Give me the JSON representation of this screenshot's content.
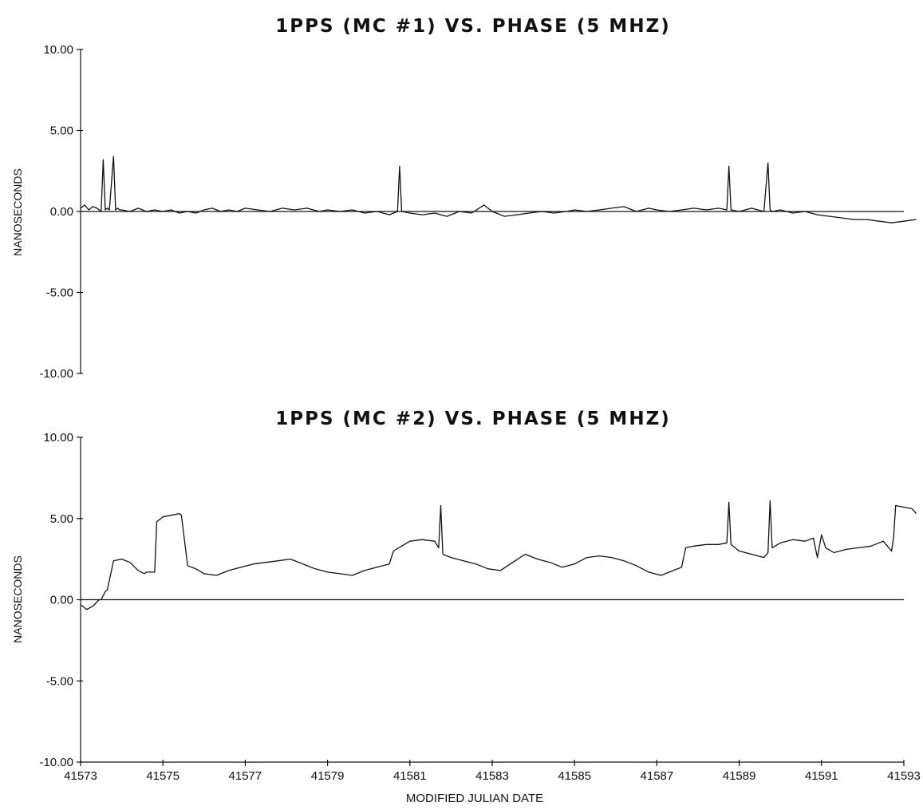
{
  "chart_data": [
    {
      "type": "line",
      "title": "1PPS (MC #1) VS. PHASE (5 MHZ)",
      "xlabel": "",
      "ylabel": "NANOSECONDS",
      "xlim": [
        41573,
        41593
      ],
      "ylim": [
        -10,
        10
      ],
      "yticks": [
        10,
        5,
        0,
        -5,
        -10
      ],
      "ytick_labels": [
        "10.00",
        "5.00",
        "0.00",
        "-5.00",
        "-10.00"
      ],
      "xticks": [],
      "reference_line": 0,
      "series": [
        {
          "x": [
            41573.0,
            41573.1,
            41573.2,
            41573.3,
            41573.4,
            41573.5,
            41573.55,
            41573.6,
            41573.65,
            41573.7,
            41573.8,
            41573.85,
            41573.9,
            41573.95,
            41574.0,
            41574.2,
            41574.4,
            41574.6,
            41574.8,
            41575.0,
            41575.2,
            41575.4,
            41575.6,
            41575.8,
            41576.0,
            41576.2,
            41576.4,
            41576.6,
            41576.8,
            41577.0,
            41577.3,
            41577.6,
            41577.9,
            41578.2,
            41578.5,
            41578.8,
            41579.0,
            41579.3,
            41579.6,
            41579.9,
            41580.2,
            41580.5,
            41580.7,
            41580.75,
            41580.8,
            41581.0,
            41581.3,
            41581.6,
            41581.9,
            41582.2,
            41582.5,
            41582.8,
            41583.0,
            41583.3,
            41583.6,
            41583.9,
            41584.2,
            41584.5,
            41584.8,
            41585.0,
            41585.3,
            41585.6,
            41585.9,
            41586.2,
            41586.5,
            41586.8,
            41587.0,
            41587.3,
            41587.6,
            41587.9,
            41588.2,
            41588.5,
            41588.7,
            41588.75,
            41588.8,
            41589.0,
            41589.3,
            41589.6,
            41589.7,
            41589.75,
            41589.8,
            41590.0,
            41590.3,
            41590.6,
            41590.9,
            41591.2,
            41591.5,
            41591.8,
            41592.1,
            41592.4,
            41592.7,
            41593.0,
            41593.3
          ],
          "y": [
            0.2,
            0.4,
            0.1,
            0.3,
            0.2,
            0.0,
            3.2,
            0.1,
            0.2,
            0.1,
            3.4,
            0.1,
            0.2,
            0.1,
            0.1,
            0.0,
            0.2,
            0.0,
            0.1,
            0.0,
            0.1,
            -0.1,
            0.0,
            -0.1,
            0.1,
            0.2,
            0.0,
            0.1,
            0.0,
            0.2,
            0.1,
            0.0,
            0.2,
            0.1,
            0.2,
            0.0,
            0.1,
            0.0,
            0.1,
            -0.1,
            0.0,
            -0.2,
            0.0,
            2.8,
            0.0,
            -0.1,
            -0.2,
            -0.1,
            -0.3,
            0.0,
            -0.1,
            0.4,
            0.0,
            -0.3,
            -0.2,
            -0.1,
            0.0,
            -0.1,
            0.0,
            0.1,
            0.0,
            0.1,
            0.2,
            0.3,
            0.0,
            0.2,
            0.1,
            0.0,
            0.1,
            0.2,
            0.1,
            0.2,
            0.1,
            2.8,
            0.1,
            0.0,
            0.2,
            0.0,
            3.0,
            0.1,
            0.0,
            0.1,
            -0.1,
            0.0,
            -0.2,
            -0.3,
            -0.4,
            -0.5,
            -0.5,
            -0.6,
            -0.7,
            -0.6,
            -0.5
          ]
        }
      ]
    },
    {
      "type": "line",
      "title": "1PPS (MC #2) VS. PHASE (5 MHZ)",
      "xlabel": "MODIFIED JULIAN DATE",
      "ylabel": "NANOSECONDS",
      "xlim": [
        41573,
        41593
      ],
      "ylim": [
        -10,
        10
      ],
      "yticks": [
        10,
        5,
        0,
        -5,
        -10
      ],
      "ytick_labels": [
        "10.00",
        "5.00",
        "0.00",
        "-5.00",
        "-10.00"
      ],
      "xticks": [
        41573,
        41575,
        41577,
        41579,
        41581,
        41583,
        41585,
        41587,
        41589,
        41591,
        41593
      ],
      "xtick_labels": [
        "41573",
        "41575",
        "41577",
        "41579",
        "41581",
        "41583",
        "41585",
        "41587",
        "41589",
        "41591",
        "41593"
      ],
      "reference_line": 0,
      "series": [
        {
          "x": [
            41573.0,
            41573.15,
            41573.3,
            41573.45,
            41573.5,
            41573.6,
            41573.65,
            41573.8,
            41574.0,
            41574.2,
            41574.4,
            41574.55,
            41574.6,
            41574.8,
            41574.85,
            41575.0,
            41575.2,
            41575.4,
            41575.45,
            41575.6,
            41575.8,
            41576.0,
            41576.3,
            41576.6,
            41576.9,
            41577.2,
            41577.5,
            41577.8,
            41578.1,
            41578.4,
            41578.7,
            41579.0,
            41579.3,
            41579.6,
            41579.9,
            41580.2,
            41580.5,
            41580.6,
            41580.8,
            41581.0,
            41581.3,
            41581.6,
            41581.7,
            41581.75,
            41581.8,
            41582.0,
            41582.3,
            41582.6,
            41582.9,
            41583.2,
            41583.5,
            41583.8,
            41584.1,
            41584.4,
            41584.7,
            41585.0,
            41585.3,
            41585.6,
            41585.9,
            41586.2,
            41586.5,
            41586.8,
            41587.1,
            41587.4,
            41587.6,
            41587.7,
            41587.9,
            41588.2,
            41588.5,
            41588.7,
            41588.75,
            41588.8,
            41589.0,
            41589.3,
            41589.6,
            41589.7,
            41589.75,
            41589.8,
            41590.0,
            41590.3,
            41590.6,
            41590.8,
            41590.9,
            41591.0,
            41591.1,
            41591.3,
            41591.6,
            41591.9,
            41592.2,
            41592.5,
            41592.7,
            41592.75,
            41592.8,
            41593.0,
            41593.2,
            41593.3
          ],
          "y": [
            -0.3,
            -0.6,
            -0.4,
            0.0,
            0.0,
            0.5,
            0.6,
            2.4,
            2.5,
            2.3,
            1.8,
            1.6,
            1.7,
            1.7,
            4.8,
            5.1,
            5.2,
            5.3,
            5.2,
            2.1,
            1.9,
            1.6,
            1.5,
            1.8,
            2.0,
            2.2,
            2.3,
            2.4,
            2.5,
            2.2,
            1.9,
            1.7,
            1.6,
            1.5,
            1.8,
            2.0,
            2.2,
            3.0,
            3.3,
            3.6,
            3.7,
            3.6,
            3.2,
            5.8,
            2.8,
            2.6,
            2.4,
            2.2,
            1.9,
            1.8,
            2.3,
            2.8,
            2.5,
            2.3,
            2.0,
            2.2,
            2.6,
            2.7,
            2.6,
            2.4,
            2.1,
            1.7,
            1.5,
            1.8,
            2.0,
            3.2,
            3.3,
            3.4,
            3.4,
            3.5,
            6.0,
            3.4,
            3.0,
            2.8,
            2.6,
            2.9,
            6.1,
            3.2,
            3.5,
            3.7,
            3.6,
            3.8,
            2.6,
            4.0,
            3.2,
            2.9,
            3.1,
            3.2,
            3.3,
            3.6,
            3.0,
            3.8,
            5.8,
            5.7,
            5.6,
            5.3
          ]
        }
      ]
    }
  ]
}
